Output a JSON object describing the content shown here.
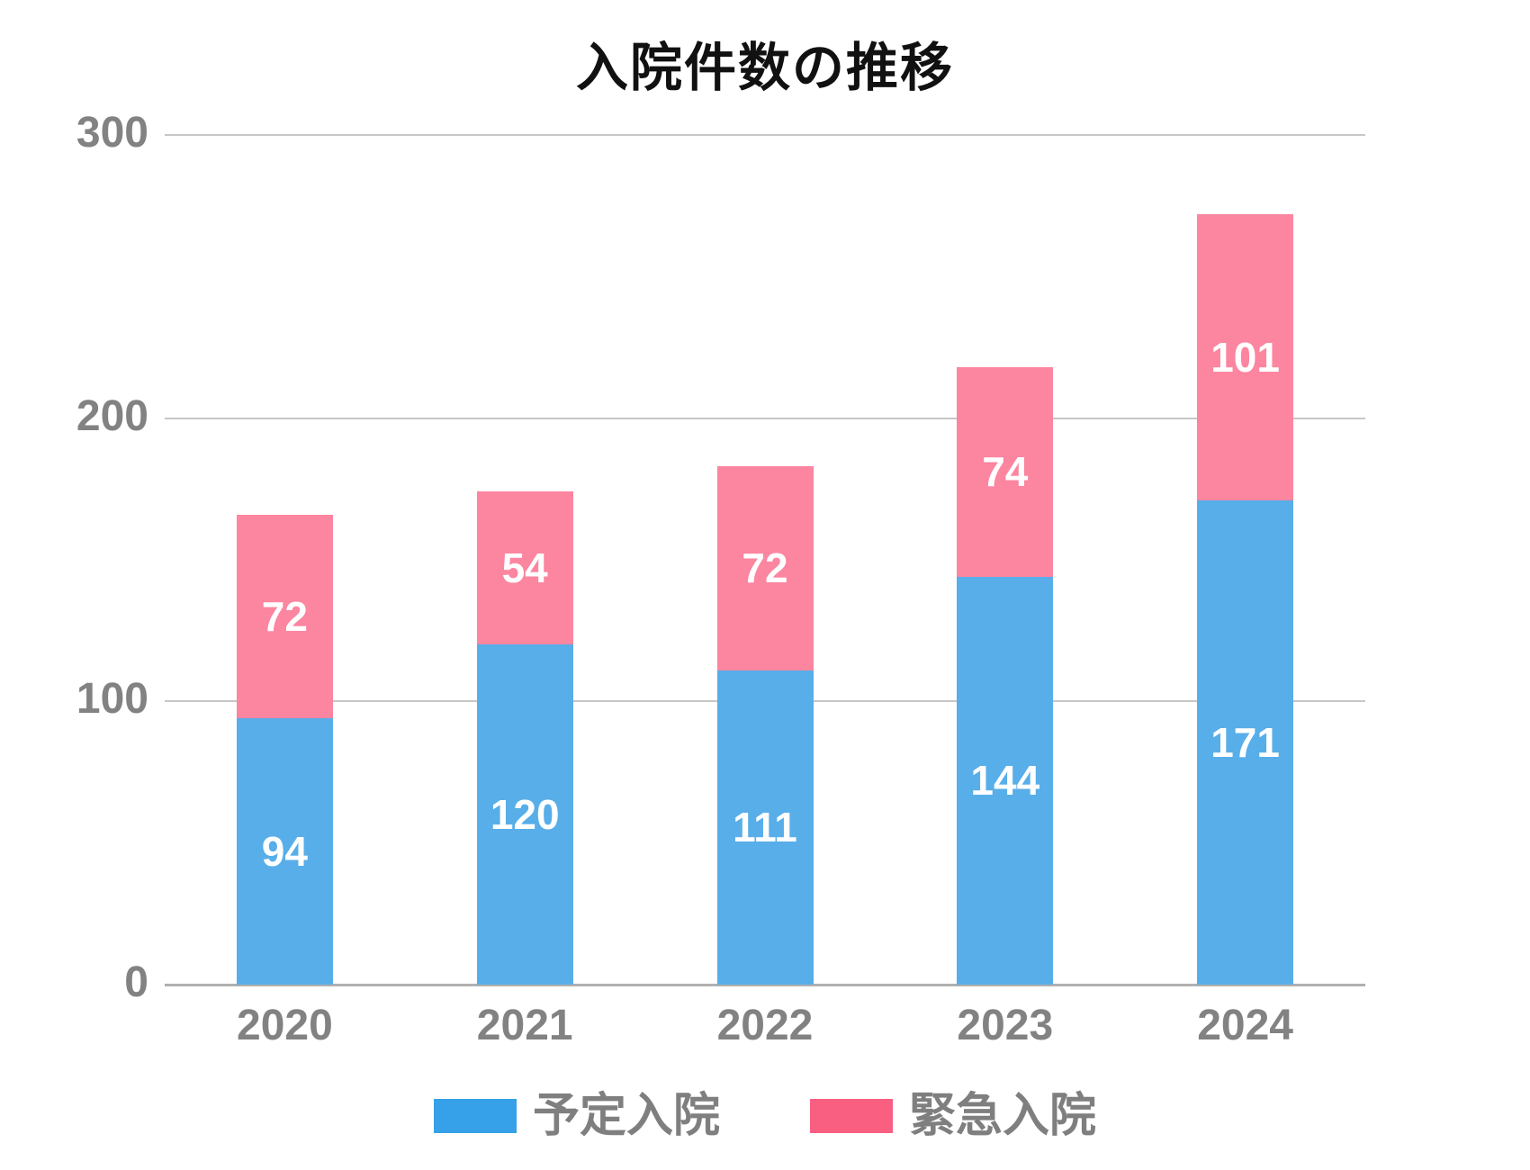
{
  "title": "入院件数の推移",
  "chart_data": {
    "type": "bar",
    "stacked": true,
    "title": "入院件数の推移",
    "categories": [
      "2020",
      "2021",
      "2022",
      "2023",
      "2024"
    ],
    "series": [
      {
        "id": "scheduled-admission",
        "name": "予定入院",
        "bar_color": "#58AEE9",
        "legend_color": "#36A0E8",
        "values": [
          94,
          120,
          111,
          144,
          171
        ]
      },
      {
        "id": "emergency-admission",
        "name": "緊急入院",
        "bar_color": "#FC85A0",
        "legend_color": "#F95F80",
        "values": [
          72,
          54,
          72,
          74,
          101
        ]
      }
    ],
    "totals": [
      166,
      174,
      183,
      218,
      272
    ],
    "xlabel": "",
    "ylabel": "",
    "ylim": [
      0,
      300
    ],
    "yticks": [
      0,
      100,
      200,
      300
    ],
    "grid": true,
    "value_labels": true,
    "legend_position": "bottom"
  },
  "colors": {
    "title_text": "#111111",
    "axis_label_text": "#828282",
    "legend_text": "#7F7F7F",
    "gridline": "#C7C7C7",
    "baseline": "#B0B0B0",
    "value_label_text": "#FFFFFF",
    "background": "#FFFFFF"
  }
}
